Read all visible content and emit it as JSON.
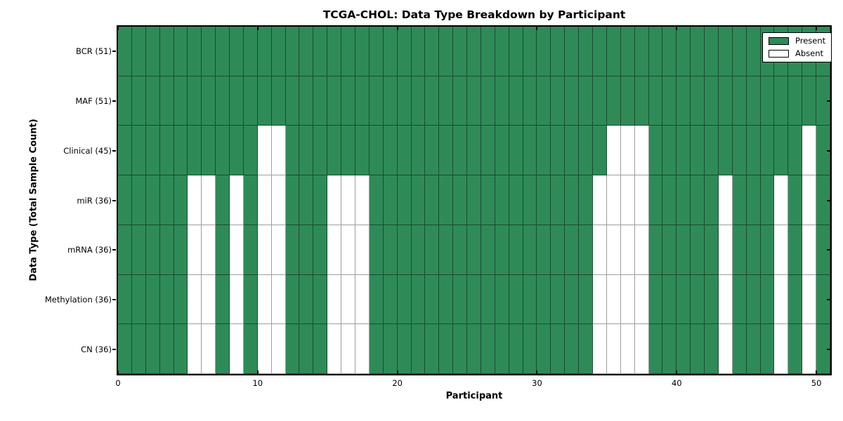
{
  "chart_data": {
    "type": "heatmap",
    "title": "TCGA-CHOL: Data Type Breakdown by Participant",
    "xlabel": "Participant",
    "ylabel": "Data Type (Total Sample Count)",
    "x_range": [
      0,
      51
    ],
    "n_participants": 51,
    "x_ticks": [
      0,
      10,
      20,
      30,
      40,
      50
    ],
    "grid": "cell-borders",
    "legend_position": "upper-right",
    "legend": [
      {
        "label": "Present",
        "color": "#2E8B57"
      },
      {
        "label": "Absent",
        "color": "#FFFFFF"
      }
    ],
    "colors": {
      "present": "#2E8B57",
      "absent": "#FFFFFF",
      "cell_edge_on_green": "#1c4a31",
      "cell_edge_on_white": "#9e9e9e"
    },
    "rows": [
      {
        "label": "BCR (51)",
        "data_type": "BCR",
        "total_samples": 51,
        "absent_participants": []
      },
      {
        "label": "MAF (51)",
        "data_type": "MAF",
        "total_samples": 51,
        "absent_participants": []
      },
      {
        "label": "Clinical (45)",
        "data_type": "Clinical",
        "total_samples": 45,
        "absent_participants": [
          10,
          11,
          35,
          36,
          37,
          49
        ]
      },
      {
        "label": "miR (36)",
        "data_type": "miR",
        "total_samples": 36,
        "absent_participants": [
          5,
          6,
          8,
          10,
          11,
          15,
          16,
          17,
          34,
          35,
          36,
          37,
          43,
          47,
          49
        ]
      },
      {
        "label": "mRNA (36)",
        "data_type": "mRNA",
        "total_samples": 36,
        "absent_participants": [
          5,
          6,
          8,
          10,
          11,
          15,
          16,
          17,
          34,
          35,
          36,
          37,
          43,
          47,
          49
        ]
      },
      {
        "label": "Methylation (36)",
        "data_type": "Methylation",
        "total_samples": 36,
        "absent_participants": [
          5,
          6,
          8,
          10,
          11,
          15,
          16,
          17,
          34,
          35,
          36,
          37,
          43,
          47,
          49
        ]
      },
      {
        "label": "CN (36)",
        "data_type": "CN",
        "total_samples": 36,
        "absent_participants": [
          5,
          6,
          8,
          10,
          11,
          15,
          16,
          17,
          34,
          35,
          36,
          37,
          43,
          47,
          49
        ]
      }
    ]
  }
}
